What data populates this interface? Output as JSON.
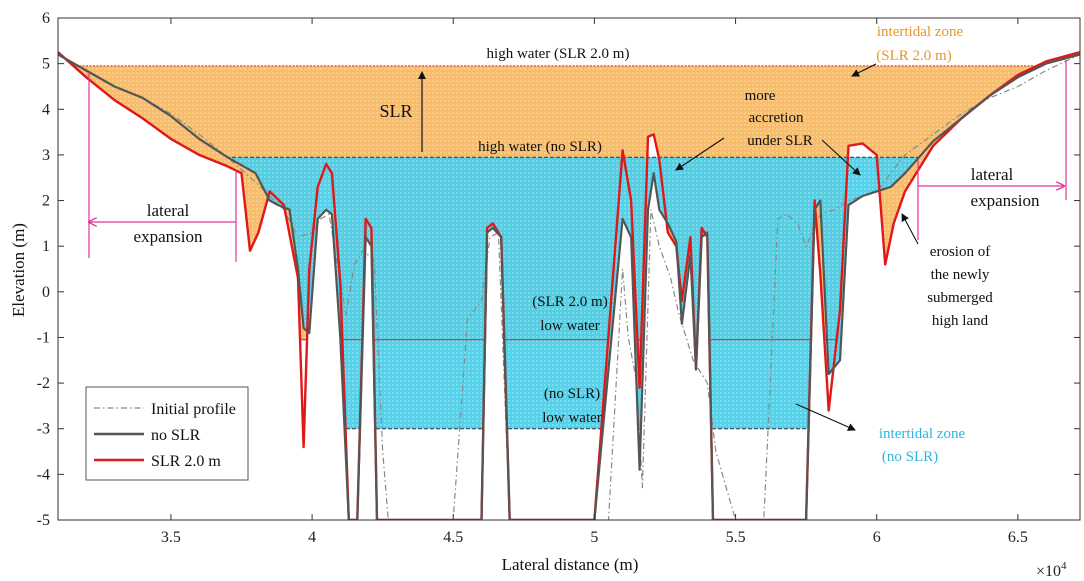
{
  "chart_data": {
    "type": "area",
    "xlabel": "Lateral distance (m)",
    "ylabel": "Elevation (m)",
    "x_multiplier_label": "×10",
    "x_multiplier_exp": "4",
    "xlim": [
      3.1,
      6.72
    ],
    "ylim": [
      -5,
      6
    ],
    "x_ticks": [
      "3.5",
      "4",
      "4.5",
      "5",
      "5.5",
      "6",
      "6.5"
    ],
    "x_tick_values": [
      3.5,
      4.0,
      4.5,
      5.0,
      5.5,
      6.0,
      6.5
    ],
    "y_ticks": [
      "-5",
      "-4",
      "-3",
      "-2",
      "-1",
      "0",
      "1",
      "2",
      "3",
      "4",
      "5",
      "6"
    ],
    "y_tick_values": [
      -5,
      -4,
      -3,
      -2,
      -1,
      0,
      1,
      2,
      3,
      4,
      5,
      6
    ],
    "grid": false,
    "legend_position": "bottom-left",
    "colors": {
      "initial": "#888888",
      "no_slr": "#555555",
      "slr": "#e01818",
      "intertidal_slr": "#f6b860",
      "intertidal_no_slr": "#46cde8",
      "annotation_pink": "#e2339a"
    },
    "levels": {
      "high_water_slr": 4.95,
      "high_water_no_slr": 2.95,
      "low_water_slr": -1.05,
      "low_water_no_slr": -3.0
    },
    "series": [
      {
        "name": "Initial profile",
        "style": "dash-dot",
        "x": [
          3.1,
          3.2,
          3.3,
          3.4,
          3.5,
          3.6,
          3.7,
          3.8,
          3.85,
          3.9,
          3.95,
          4.0,
          4.03,
          4.06,
          4.09,
          4.12,
          4.15,
          4.18,
          4.2,
          4.22,
          4.25,
          4.27,
          4.3,
          4.4,
          4.5,
          4.55,
          4.6,
          4.63,
          4.66,
          4.7,
          4.8,
          4.9,
          5.0,
          5.05,
          5.1,
          5.12,
          5.15,
          5.17,
          5.2,
          5.23,
          5.27,
          5.3,
          5.35,
          5.4,
          5.43,
          5.5,
          5.55,
          5.6,
          5.65,
          5.68,
          5.72,
          5.75,
          5.8,
          5.85,
          5.9,
          5.95,
          6.0,
          6.05,
          6.1,
          6.2,
          6.3,
          6.4,
          6.5,
          6.6,
          6.72
        ],
        "y": [
          5.2,
          4.85,
          4.5,
          4.25,
          3.9,
          3.45,
          2.95,
          2.4,
          2.1,
          1.8,
          1.2,
          1.3,
          1.6,
          1.7,
          0.6,
          -0.5,
          0.6,
          0.9,
          0.8,
          0.7,
          -3.5,
          -5,
          -5,
          -5,
          -5,
          -0.6,
          -0.2,
          1.2,
          1.3,
          -5,
          -5,
          -5,
          -5,
          -5,
          0.5,
          -1.0,
          -2.0,
          -4.3,
          1.8,
          1.0,
          0.3,
          -0.5,
          -1.5,
          -2.0,
          -3.5,
          -5,
          -5,
          -5,
          1.6,
          1.7,
          1.5,
          1.0,
          1.7,
          1.8,
          2.0,
          2.1,
          2.2,
          2.6,
          3.0,
          3.45,
          3.9,
          4.25,
          4.5,
          4.85,
          5.2
        ]
      },
      {
        "name": "no SLR",
        "style": "solid",
        "x": [
          3.1,
          3.2,
          3.3,
          3.4,
          3.5,
          3.6,
          3.7,
          3.8,
          3.85,
          3.88,
          3.92,
          3.95,
          3.97,
          3.99,
          4.02,
          4.05,
          4.07,
          4.1,
          4.13,
          4.16,
          4.19,
          4.21,
          4.23,
          4.25,
          4.27,
          4.3,
          4.5,
          4.6,
          4.62,
          4.64,
          4.67,
          4.7,
          4.8,
          5.0,
          5.1,
          5.13,
          5.16,
          5.19,
          5.21,
          5.23,
          5.26,
          5.29,
          5.31,
          5.34,
          5.36,
          5.38,
          5.4,
          5.42,
          5.45,
          5.48,
          5.5,
          5.6,
          5.75,
          5.78,
          5.8,
          5.83,
          5.87,
          5.9,
          5.95,
          6.0,
          6.05,
          6.1,
          6.2,
          6.3,
          6.4,
          6.5,
          6.6,
          6.72
        ],
        "y": [
          5.2,
          4.85,
          4.5,
          4.25,
          3.85,
          3.35,
          2.95,
          2.6,
          2.0,
          1.9,
          1.8,
          0.5,
          -0.8,
          -0.9,
          1.6,
          1.8,
          1.7,
          -1.0,
          -5,
          -5,
          1.2,
          1.0,
          -5,
          -5,
          -5,
          -5,
          -5,
          -5,
          1.3,
          1.4,
          1.2,
          -5,
          -5,
          -5,
          1.6,
          1.2,
          -3.9,
          1.8,
          2.6,
          1.8,
          1.5,
          1.1,
          -0.7,
          0.8,
          -1.7,
          1.2,
          1.3,
          -5,
          -5,
          -5,
          -5,
          -5,
          -5,
          1.8,
          2.0,
          -1.8,
          -1.5,
          1.9,
          2.1,
          2.2,
          2.3,
          2.6,
          3.3,
          3.8,
          4.3,
          4.7,
          5.0,
          5.2
        ]
      },
      {
        "name": "SLR 2.0 m",
        "style": "solid",
        "x": [
          3.1,
          3.2,
          3.3,
          3.4,
          3.5,
          3.6,
          3.7,
          3.75,
          3.78,
          3.81,
          3.85,
          3.9,
          3.95,
          3.97,
          3.99,
          4.02,
          4.05,
          4.07,
          4.1,
          4.13,
          4.16,
          4.19,
          4.21,
          4.23,
          4.25,
          4.3,
          4.5,
          4.6,
          4.62,
          4.64,
          4.67,
          4.7,
          4.8,
          5.0,
          5.1,
          5.13,
          5.16,
          5.19,
          5.21,
          5.23,
          5.26,
          5.29,
          5.31,
          5.34,
          5.36,
          5.38,
          5.4,
          5.42,
          5.45,
          5.48,
          5.5,
          5.6,
          5.75,
          5.78,
          5.8,
          5.83,
          5.87,
          5.9,
          5.95,
          6.0,
          6.03,
          6.06,
          6.1,
          6.2,
          6.3,
          6.4,
          6.5,
          6.6,
          6.72
        ],
        "y": [
          5.25,
          4.7,
          4.2,
          3.8,
          3.35,
          3.0,
          2.75,
          2.6,
          0.9,
          1.3,
          2.2,
          1.9,
          0.3,
          -3.4,
          0.5,
          2.3,
          2.8,
          2.6,
          0.2,
          -5,
          -5,
          1.6,
          1.4,
          -5,
          -5,
          -5,
          -5,
          -5,
          1.4,
          1.5,
          1.2,
          -5,
          -5,
          -5,
          3.1,
          2.0,
          -2.1,
          3.4,
          3.45,
          2.9,
          1.3,
          1.0,
          -0.2,
          1.2,
          -1.7,
          1.4,
          1.2,
          -5,
          -5,
          -5,
          -5,
          -5,
          -5,
          2.0,
          0.4,
          -2.6,
          -0.4,
          3.2,
          3.25,
          3.0,
          0.6,
          1.5,
          2.2,
          3.2,
          3.8,
          4.3,
          4.75,
          5.05,
          5.25
        ]
      }
    ],
    "annotations": {
      "high_water_slr": "high water (SLR 2.0 m)",
      "high_water_no_slr": "high water (no SLR)",
      "slr": "SLR",
      "lateral_left_1": "lateral",
      "lateral_left_2": "expansion",
      "lateral_right_1": "lateral",
      "lateral_right_2": "expansion",
      "more_1": "more",
      "more_2": "accretion",
      "more_3": "under SLR",
      "erosion_1": "erosion of",
      "erosion_2": "the newly",
      "erosion_3": "submerged",
      "erosion_4": "high land",
      "low_slr_1": "(SLR 2.0 m)",
      "low_slr_2": "low water",
      "low_noslr_1": "(no SLR)",
      "low_noslr_2": "low water",
      "intertidal_slr_1": "intertidal zone",
      "intertidal_slr_2": "(SLR 2.0 m)",
      "intertidal_noslr_1": "intertidal zone",
      "intertidal_noslr_2": "(no SLR)"
    }
  }
}
